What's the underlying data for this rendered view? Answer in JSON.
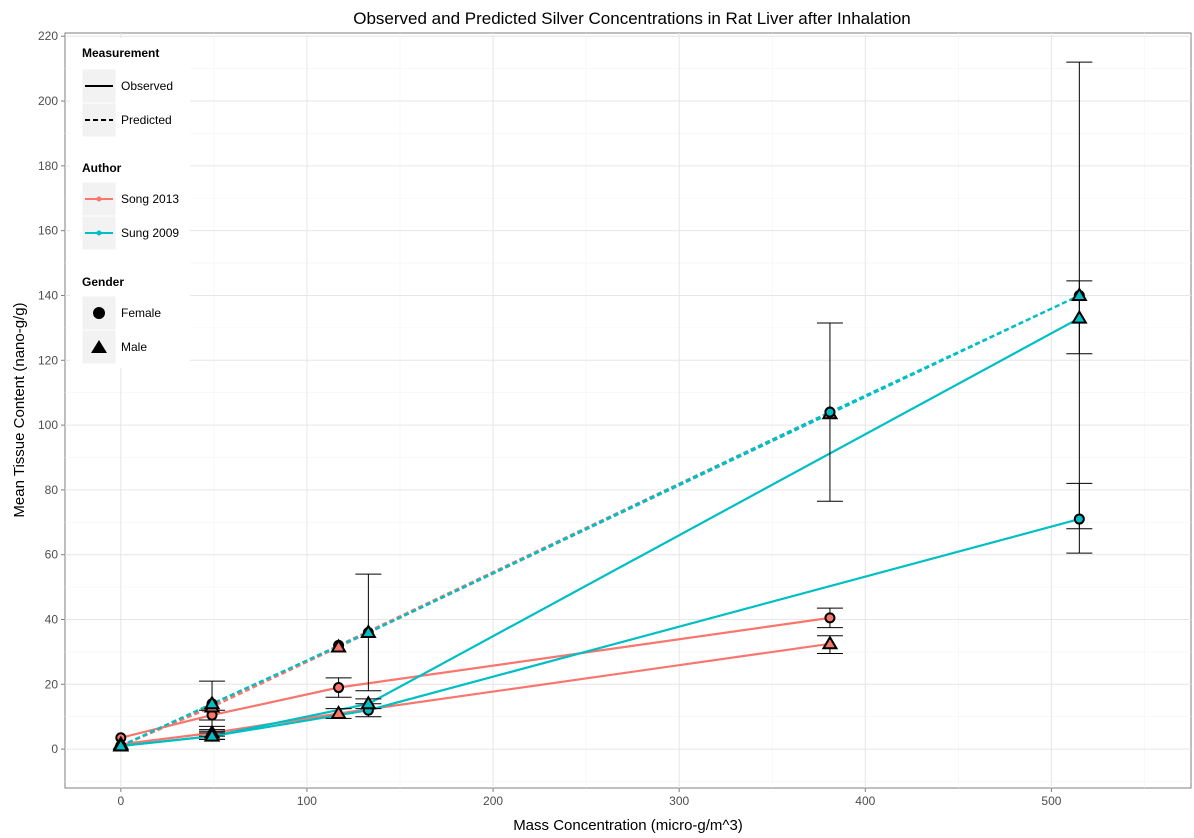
{
  "chart_data": {
    "type": "line",
    "title": "Observed and Predicted Silver Concentrations in Rat Liver after Inhalation",
    "xlabel": "Mass Concentration (micro-g/m^3)",
    "ylabel": "Mean Tissue Content (nano-g/g)",
    "xlim": [
      -30,
      575
    ],
    "ylim": [
      -12,
      221
    ],
    "x_ticks": [
      0,
      100,
      200,
      300,
      400,
      500
    ],
    "y_ticks": [
      0,
      20,
      40,
      60,
      80,
      100,
      120,
      140,
      160,
      180,
      200,
      220
    ],
    "grid": true,
    "legend_position": "top-left",
    "legend": {
      "measurement": {
        "title": "Measurement",
        "observed": "Observed",
        "predicted": "Predicted"
      },
      "author": {
        "title": "Author",
        "song": "Song 2013",
        "sung": "Sung 2009"
      },
      "gender": {
        "title": "Gender",
        "female": "Female",
        "male": "Male"
      }
    },
    "colors": {
      "Song 2013": "#f8766d",
      "Sung 2009": "#00bfc4",
      "error_bar": "#000000"
    },
    "series": [
      {
        "author": "Song 2013",
        "gender": "Female",
        "measurement": "Observed",
        "x": [
          0,
          49,
          117,
          381
        ],
        "y": [
          3.5,
          10.5,
          19,
          40.5
        ],
        "err_low": [
          null,
          9,
          16,
          37.5
        ],
        "err_high": [
          null,
          12,
          22,
          43.5
        ]
      },
      {
        "author": "Song 2013",
        "gender": "Male",
        "measurement": "Observed",
        "x": [
          0,
          49,
          117,
          381
        ],
        "y": [
          1.5,
          5,
          11,
          32.5
        ],
        "err_low": [
          null,
          4,
          9.5,
          29.5
        ],
        "err_high": [
          null,
          6,
          12.5,
          35
        ]
      },
      {
        "author": "Song 2013",
        "gender": "Female",
        "measurement": "Predicted",
        "x": [
          0,
          49,
          117,
          381
        ],
        "y": [
          1,
          13.5,
          32,
          104
        ],
        "err_low": null,
        "err_high": null
      },
      {
        "author": "Song 2013",
        "gender": "Male",
        "measurement": "Predicted",
        "x": [
          0,
          49,
          117,
          381
        ],
        "y": [
          1,
          13,
          31.5,
          103.5
        ],
        "err_low": null,
        "err_high": null
      },
      {
        "author": "Sung 2009",
        "gender": "Female",
        "measurement": "Observed",
        "x": [
          0,
          49,
          133,
          515
        ],
        "y": [
          1,
          4,
          12,
          71
        ],
        "err_low": [
          null,
          3,
          10,
          60.5
        ],
        "err_high": [
          null,
          5,
          14,
          82
        ]
      },
      {
        "author": "Sung 2009",
        "gender": "Male",
        "measurement": "Observed",
        "x": [
          0,
          49,
          133,
          515
        ],
        "y": [
          1,
          4,
          14,
          133
        ],
        "err_low": [
          null,
          3,
          12.5,
          122
        ],
        "err_high": [
          null,
          5.5,
          15.5,
          144.5
        ]
      },
      {
        "author": "Sung 2009",
        "gender": "Female",
        "measurement": "Predicted",
        "x": [
          0,
          49,
          133,
          381,
          515
        ],
        "y": [
          1,
          14,
          36,
          104,
          140
        ],
        "err_low": [
          null,
          7,
          18,
          76.5,
          68
        ],
        "err_high": [
          null,
          21,
          54,
          131.5,
          212
        ]
      },
      {
        "author": "Sung 2009",
        "gender": "Male",
        "measurement": "Predicted",
        "x": [
          0,
          49,
          133,
          515
        ],
        "y": [
          1,
          14,
          36,
          140
        ],
        "err_low": null,
        "err_high": null
      }
    ]
  }
}
